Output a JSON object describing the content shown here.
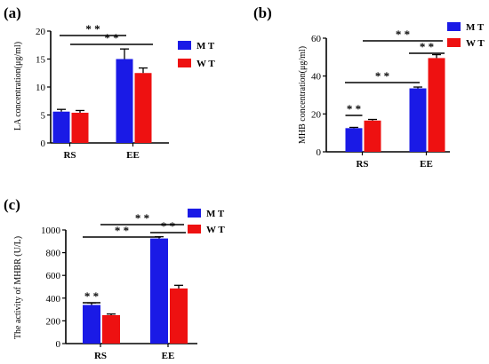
{
  "figure": {
    "colors": {
      "MT": "#1a1ae6",
      "WT": "#ee1111"
    }
  },
  "chart_data": [
    {
      "panel": "(a)",
      "type": "bar",
      "ylabel": "LA concentration(μg/ml)",
      "ylim": [
        0,
        20
      ],
      "yticks": [
        0,
        5,
        10,
        15,
        20
      ],
      "categories": [
        "RS",
        "EE"
      ],
      "series": [
        {
          "name": "M T",
          "color": "#1a1ae6",
          "values": [
            5.6,
            15.0
          ],
          "errors": [
            0.4,
            1.8
          ]
        },
        {
          "name": "W T",
          "color": "#ee1111",
          "values": [
            5.4,
            12.5
          ],
          "errors": [
            0.4,
            0.9
          ]
        }
      ],
      "legend": "top-right",
      "significance": [
        {
          "from": [
            0,
            0
          ],
          "to": [
            1,
            0
          ],
          "label": "* *"
        },
        {
          "from": [
            0,
            1
          ],
          "to": [
            1,
            1
          ],
          "label": "* *"
        }
      ]
    },
    {
      "panel": "(b)",
      "type": "bar",
      "ylabel": "MHB concentration(μg/ml)",
      "ylim": [
        0,
        60
      ],
      "yticks": [
        0,
        20,
        40,
        60
      ],
      "categories": [
        "RS",
        "EE"
      ],
      "series": [
        {
          "name": "M T",
          "color": "#1a1ae6",
          "values": [
            12.5,
            33.5
          ],
          "errors": [
            0.4,
            0.7
          ]
        },
        {
          "name": "W T",
          "color": "#ee1111",
          "values": [
            16.5,
            49.5
          ],
          "errors": [
            0.6,
            1.8
          ]
        }
      ],
      "legend": "top-right",
      "significance": [
        {
          "from": [
            0,
            0
          ],
          "to": [
            0,
            1
          ],
          "label": "* *"
        },
        {
          "from": [
            0,
            0
          ],
          "to": [
            1,
            0
          ],
          "label": "* *"
        },
        {
          "from": [
            1,
            0
          ],
          "to": [
            1,
            1
          ],
          "label": "* *"
        },
        {
          "from": [
            0,
            1
          ],
          "to": [
            1,
            1
          ],
          "label": "* *"
        }
      ]
    },
    {
      "panel": "(c)",
      "type": "bar",
      "ylabel": "The activity of MHBR (U/L)",
      "ylim": [
        0,
        1000
      ],
      "yticks": [
        0,
        200,
        400,
        600,
        800,
        1000
      ],
      "categories": [
        "RS",
        "EE"
      ],
      "series": [
        {
          "name": "M T",
          "color": "#1a1ae6",
          "values": [
            340,
            925
          ],
          "errors": [
            18,
            15
          ]
        },
        {
          "name": "W T",
          "color": "#ee1111",
          "values": [
            250,
            485
          ],
          "errors": [
            10,
            28
          ]
        }
      ],
      "legend": "top-right",
      "significance": [
        {
          "from": [
            0,
            0
          ],
          "to": [
            0,
            1
          ],
          "label": "* *"
        },
        {
          "from": [
            0,
            0
          ],
          "to": [
            1,
            0
          ],
          "label": "* *"
        },
        {
          "from": [
            1,
            0
          ],
          "to": [
            1,
            1
          ],
          "label": "* *"
        },
        {
          "from": [
            0,
            1
          ],
          "to": [
            1,
            1
          ],
          "label": "* *"
        }
      ]
    }
  ]
}
